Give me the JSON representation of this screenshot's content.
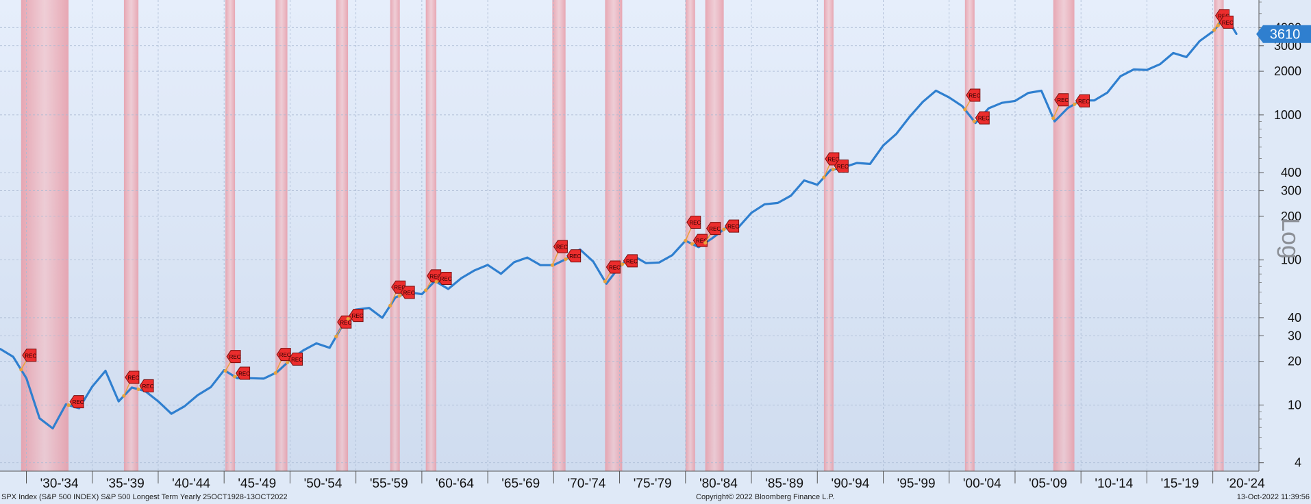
{
  "footer": {
    "left": "SPX Index (S&P 500 INDEX) S&P 500 Longest Term  Yearly 25OCT1928-13OCT2022",
    "center": "Copyright© 2022 Bloomberg Finance L.P.",
    "right": "13-Oct-2022 11:39:56"
  },
  "chart_data": {
    "type": "line",
    "scale": "log",
    "scale_label": "Log",
    "ylim": [
      3.5,
      6200
    ],
    "y_ticks": [
      "4",
      "10",
      "20",
      "30",
      "40",
      "100",
      "200",
      "300",
      "400",
      "1000",
      "2000",
      "3000",
      "4000"
    ],
    "x_tick_labels": [
      "'30-'34",
      "'35-'39",
      "'40-'44",
      "'45-'49",
      "'50-'54",
      "'55-'59",
      "'60-'64",
      "'65-'69",
      "'70-'74",
      "'75-'79",
      "'80-'84",
      "'85-'89",
      "'90-'94",
      "'95-'99",
      "'00-'04",
      "'05-'09",
      "'10-'14",
      "'15-'19",
      "'20-'24"
    ],
    "last_value_label": "3610",
    "recession_label": "REC",
    "recessions": [
      [
        1929.6,
        1933.2
      ],
      [
        1937.4,
        1938.5
      ],
      [
        1945.1,
        1945.8
      ],
      [
        1948.9,
        1949.8
      ],
      [
        1953.5,
        1954.4
      ],
      [
        1957.6,
        1958.3
      ],
      [
        1960.3,
        1961.1
      ],
      [
        1969.9,
        1970.9
      ],
      [
        1973.9,
        1975.2
      ],
      [
        1980.0,
        1980.5
      ],
      [
        1981.5,
        1982.9
      ],
      [
        1990.5,
        1991.2
      ],
      [
        2001.2,
        2001.9
      ],
      [
        2007.9,
        2009.5
      ],
      [
        2020.1,
        2020.4
      ]
    ],
    "series": [
      {
        "x": [
          1928,
          1929,
          1930,
          1931,
          1932,
          1933,
          1934,
          1935,
          1936,
          1937,
          1938,
          1939,
          1940,
          1941,
          1942,
          1943,
          1944,
          1945,
          1946,
          1947,
          1948,
          1949,
          1950,
          1951,
          1952,
          1953,
          1954,
          1955,
          1956,
          1957,
          1958,
          1959,
          1960,
          1961,
          1962,
          1963,
          1964,
          1965,
          1966,
          1967,
          1968,
          1969,
          1970,
          1971,
          1972,
          1973,
          1974,
          1975,
          1976,
          1977,
          1978,
          1979,
          1980,
          1981,
          1982,
          1983,
          1984,
          1985,
          1986,
          1987,
          1988,
          1989,
          1990,
          1991,
          1992,
          1993,
          1994,
          1995,
          1996,
          1997,
          1998,
          1999,
          2000,
          2001,
          2002,
          2003,
          2004,
          2005,
          2006,
          2007,
          2008,
          2009,
          2010,
          2011,
          2012,
          2013,
          2014,
          2015,
          2016,
          2017,
          2018,
          2019,
          2020,
          2021,
          2021.8
        ],
        "values": [
          24.4,
          21.5,
          15.3,
          8.1,
          6.9,
          10.1,
          9.5,
          13.4,
          17.2,
          10.6,
          13.2,
          12.5,
          10.6,
          8.7,
          9.8,
          11.7,
          13.3,
          17.4,
          15.3,
          15.3,
          15.2,
          16.8,
          20.4,
          23.8,
          26.6,
          24.8,
          35.6,
          45.5,
          46.7,
          39.9,
          55.2,
          59.9,
          58.1,
          71.6,
          63.1,
          75.0,
          84.8,
          92.4,
          80.3,
          96.5,
          103.9,
          92.1,
          92.2,
          102.1,
          118.1,
          97.6,
          68.6,
          90.2,
          107.5,
          95.1,
          96.1,
          107.9,
          135.8,
          122.6,
          140.6,
          164.9,
          167.2,
          211.3,
          242.2,
          247.1,
          277.7,
          353.4,
          330.2,
          417.1,
          435.7,
          466.5,
          459.3,
          615.9,
          740.7,
          970.4,
          1229.2,
          1469.3,
          1320.3,
          1148.1,
          879.8,
          1111.9,
          1211.9,
          1248.3,
          1418.3,
          1468.4,
          903.3,
          1115.1,
          1257.6,
          1257.6,
          1426.2,
          1848.4,
          2058.9,
          2043.9,
          2238.8,
          2673.6,
          2506.9,
          3230.8,
          3756.1,
          4766.2,
          3610
        ]
      }
    ]
  }
}
